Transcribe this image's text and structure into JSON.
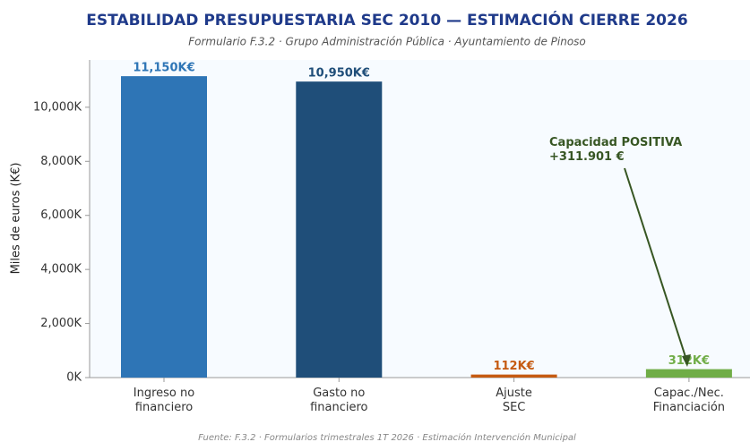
{
  "chart_data": {
    "type": "bar",
    "title": "ESTABILIDAD PRESUPUESTARIA SEC 2010 — ESTIMACIÓN CIERRE 2026",
    "subtitle": "Formulario F.3.2 · Grupo Administración Pública · Ayuntamiento de Pinoso",
    "y_label": "Miles de euros (K€)",
    "source": "Fuente: F.3.2 · Formularios trimestrales 1T 2026 · Estimación Intervención Municipal",
    "categories": [
      "Ingreso no\nfinanciero",
      "Gasto no\nfinanciero",
      "Ajuste\nSEC",
      "Capac./Nec.\nFinanciación"
    ],
    "values": [
      11150,
      10950,
      112,
      312
    ],
    "value_labels": [
      "11,150K€",
      "10,950K€",
      "112K€",
      "312K€"
    ],
    "colors": [
      "#2e75b6",
      "#1f4e79",
      "#c55a11",
      "#70ad47"
    ],
    "ylim": [
      0,
      11750
    ],
    "yticks": [
      {
        "value": 0,
        "label": "0K"
      },
      {
        "value": 2000,
        "label": "2,000K"
      },
      {
        "value": 4000,
        "label": "4,000K"
      },
      {
        "value": 6000,
        "label": "6,000K"
      },
      {
        "value": 8000,
        "label": "8,000K"
      },
      {
        "value": 10000,
        "label": "10,000K"
      }
    ],
    "annotation": "Capacidad POSITIVA\n+311.901 €"
  }
}
